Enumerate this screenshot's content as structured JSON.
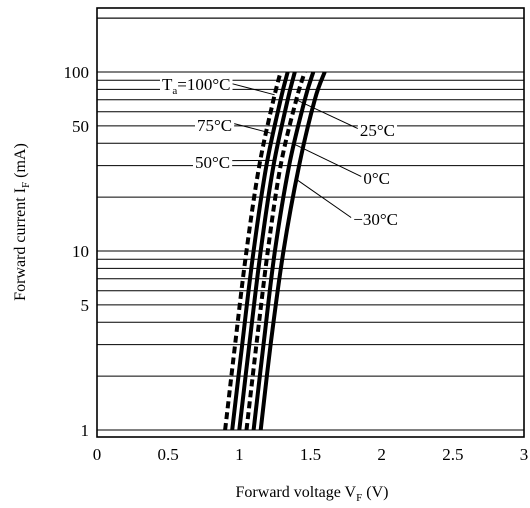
{
  "chart_data": {
    "type": "line",
    "xlabel": {
      "main": "Forward voltage V",
      "sub": "F",
      "unit": " (V)"
    },
    "ylabel": {
      "main": "Forward current I",
      "sub": "F",
      "unit": " (mA)"
    },
    "xlim": [
      0,
      3
    ],
    "ylim": [
      1,
      200
    ],
    "y_scale": "log",
    "grid": "horizontal",
    "x_ticks": [
      "0",
      "0.5",
      "1",
      "1.5",
      "2",
      "2.5",
      "3"
    ],
    "y_ticks": [
      "1",
      "5",
      "10",
      "50",
      "100"
    ],
    "annotations": [
      {
        "main": "T",
        "sub": "a",
        "rest": "=100°C"
      },
      {
        "main": "75°C"
      },
      {
        "main": "50°C"
      },
      {
        "main": "25°C"
      },
      {
        "main": "0°C"
      },
      {
        "main": "−30°C"
      }
    ],
    "series": [
      {
        "temperature_c": 100,
        "style": "dashed",
        "points": [
          [
            0.9,
            1
          ],
          [
            0.97,
            3
          ],
          [
            1.05,
            10
          ],
          [
            1.14,
            30
          ],
          [
            1.24,
            70
          ],
          [
            1.29,
            100
          ]
        ]
      },
      {
        "temperature_c": 75,
        "style": "solid",
        "points": [
          [
            0.95,
            1
          ],
          [
            1.02,
            3
          ],
          [
            1.1,
            10
          ],
          [
            1.19,
            30
          ],
          [
            1.29,
            70
          ],
          [
            1.34,
            100
          ]
        ]
      },
      {
        "temperature_c": 50,
        "style": "solid",
        "points": [
          [
            1.0,
            1
          ],
          [
            1.07,
            3
          ],
          [
            1.15,
            10
          ],
          [
            1.24,
            30
          ],
          [
            1.34,
            70
          ],
          [
            1.39,
            100
          ]
        ]
      },
      {
        "temperature_c": 25,
        "style": "dashed",
        "points": [
          [
            1.05,
            1
          ],
          [
            1.12,
            3
          ],
          [
            1.2,
            10
          ],
          [
            1.29,
            30
          ],
          [
            1.4,
            70
          ],
          [
            1.46,
            100
          ]
        ]
      },
      {
        "temperature_c": 0,
        "style": "solid",
        "points": [
          [
            1.1,
            1
          ],
          [
            1.17,
            3
          ],
          [
            1.25,
            10
          ],
          [
            1.35,
            30
          ],
          [
            1.46,
            70
          ],
          [
            1.52,
            100
          ]
        ]
      },
      {
        "temperature_c": -30,
        "style": "solid",
        "points": [
          [
            1.15,
            1
          ],
          [
            1.22,
            3
          ],
          [
            1.31,
            10
          ],
          [
            1.42,
            30
          ],
          [
            1.53,
            70
          ],
          [
            1.6,
            100
          ]
        ]
      }
    ]
  }
}
